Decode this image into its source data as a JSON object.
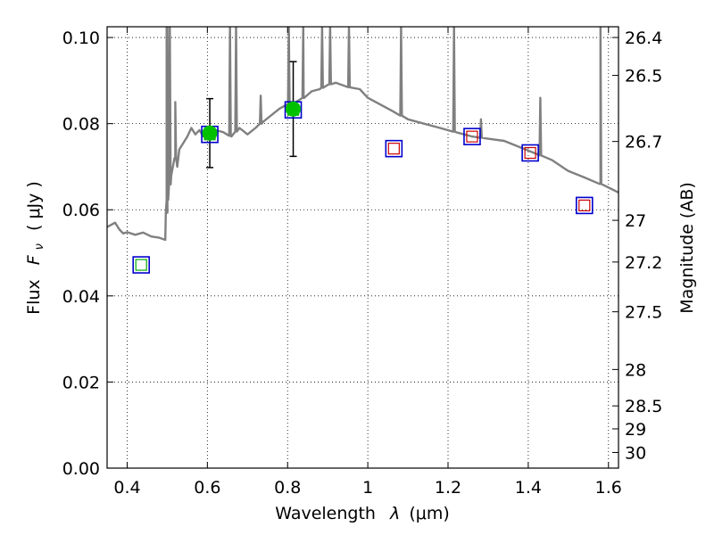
{
  "chart_data": {
    "type": "scatter",
    "xlabel": "Wavelength",
    "xlabel_symbol": "λ",
    "xlabel_unit": "(μm)",
    "ylabel": "Flux",
    "ylabel_symbol": "F",
    "ylabel_subscript": "ν",
    "ylabel_unit": "( μJy )",
    "y2label": "Magnitude (AB)",
    "xlim": [
      0.35,
      1.625
    ],
    "ylim": [
      0.0,
      0.1025
    ],
    "grid": true,
    "x_ticks": [
      {
        "v": 0.4,
        "label": "0.4"
      },
      {
        "v": 0.6,
        "label": "0.6"
      },
      {
        "v": 0.8,
        "label": "0.8"
      },
      {
        "v": 1.0,
        "label": "1"
      },
      {
        "v": 1.2,
        "label": "1.2"
      },
      {
        "v": 1.4,
        "label": "1.4"
      },
      {
        "v": 1.6,
        "label": "1.6"
      }
    ],
    "y_ticks": [
      {
        "v": 0.0,
        "label": "0.00"
      },
      {
        "v": 0.02,
        "label": "0.02"
      },
      {
        "v": 0.04,
        "label": "0.04"
      },
      {
        "v": 0.06,
        "label": "0.06"
      },
      {
        "v": 0.08,
        "label": "0.08"
      },
      {
        "v": 0.1,
        "label": "0.10"
      }
    ],
    "magnitude_ticks": [
      {
        "label": "26.4"
      },
      {
        "label": "26.5"
      },
      {
        "label": "26.7"
      },
      {
        "label": "27"
      },
      {
        "label": "27.2"
      },
      {
        "label": "27.5"
      },
      {
        "label": "28"
      },
      {
        "label": "28.5"
      },
      {
        "label": "29"
      },
      {
        "label": "30"
      }
    ],
    "colors": {
      "spectrum": "#808080",
      "detection_fill": "#00c000",
      "box_outline": "#0000cc",
      "model_green": "#00aa00",
      "model_red": "#cc0000",
      "errorbar": "#000000"
    },
    "series": [
      {
        "name": "model spectrum",
        "type": "line",
        "x": [
          0.35,
          0.37,
          0.38,
          0.39,
          0.4,
          0.42,
          0.44,
          0.46,
          0.48,
          0.495,
          0.5,
          0.51,
          0.52,
          0.525,
          0.53,
          0.54,
          0.55,
          0.56,
          0.57,
          0.58,
          0.59,
          0.6,
          0.62,
          0.64,
          0.66,
          0.68,
          0.7,
          0.72,
          0.74,
          0.76,
          0.78,
          0.8,
          0.82,
          0.84,
          0.86,
          0.88,
          0.9,
          0.92,
          0.95,
          0.98,
          1.0,
          1.03,
          1.06,
          1.1,
          1.14,
          1.18,
          1.22,
          1.26,
          1.3,
          1.34,
          1.38,
          1.42,
          1.46,
          1.5,
          1.54,
          1.58,
          1.625
        ],
        "y": [
          0.056,
          0.057,
          0.0555,
          0.0545,
          0.0548,
          0.0542,
          0.0547,
          0.0538,
          0.0535,
          0.053,
          0.062,
          0.068,
          0.072,
          0.07,
          0.074,
          0.0755,
          0.077,
          0.079,
          0.0775,
          0.0785,
          0.077,
          0.079,
          0.0785,
          0.078,
          0.077,
          0.079,
          0.0775,
          0.079,
          0.0805,
          0.082,
          0.0835,
          0.0845,
          0.085,
          0.086,
          0.0875,
          0.088,
          0.089,
          0.0895,
          0.0885,
          0.088,
          0.086,
          0.0845,
          0.083,
          0.081,
          0.08,
          0.079,
          0.078,
          0.077,
          0.0765,
          0.076,
          0.0745,
          0.073,
          0.0715,
          0.069,
          0.0675,
          0.066,
          0.064
        ]
      },
      {
        "name": "emission spikes",
        "type": "spikes",
        "x": [
          0.4985,
          0.5005,
          0.5065,
          0.52,
          0.6565,
          0.6715,
          0.733,
          0.803,
          0.839,
          0.886,
          0.906,
          0.953,
          1.083,
          1.282,
          1.215,
          1.58,
          1.43
        ],
        "y": [
          0.1025,
          0.1025,
          0.1025,
          0.085,
          0.1025,
          0.1025,
          0.0865,
          0.1025,
          0.1025,
          0.1025,
          0.1025,
          0.1025,
          0.1025,
          0.081,
          0.1025,
          0.1025,
          0.086
        ]
      },
      {
        "name": "detections",
        "type": "points",
        "x": [
          0.606,
          0.814
        ],
        "y": [
          0.0778,
          0.0834
        ],
        "err": [
          0.008,
          0.011
        ]
      },
      {
        "name": "model photometry",
        "type": "boxes",
        "x": [
          0.435,
          0.606,
          0.814,
          1.065,
          1.26,
          1.405,
          1.54
        ],
        "y": [
          0.0472,
          0.0775,
          0.0832,
          0.0742,
          0.077,
          0.0732,
          0.061
        ],
        "inner": [
          "green",
          "green",
          "green",
          "red",
          "red",
          "red",
          "red"
        ]
      }
    ]
  }
}
